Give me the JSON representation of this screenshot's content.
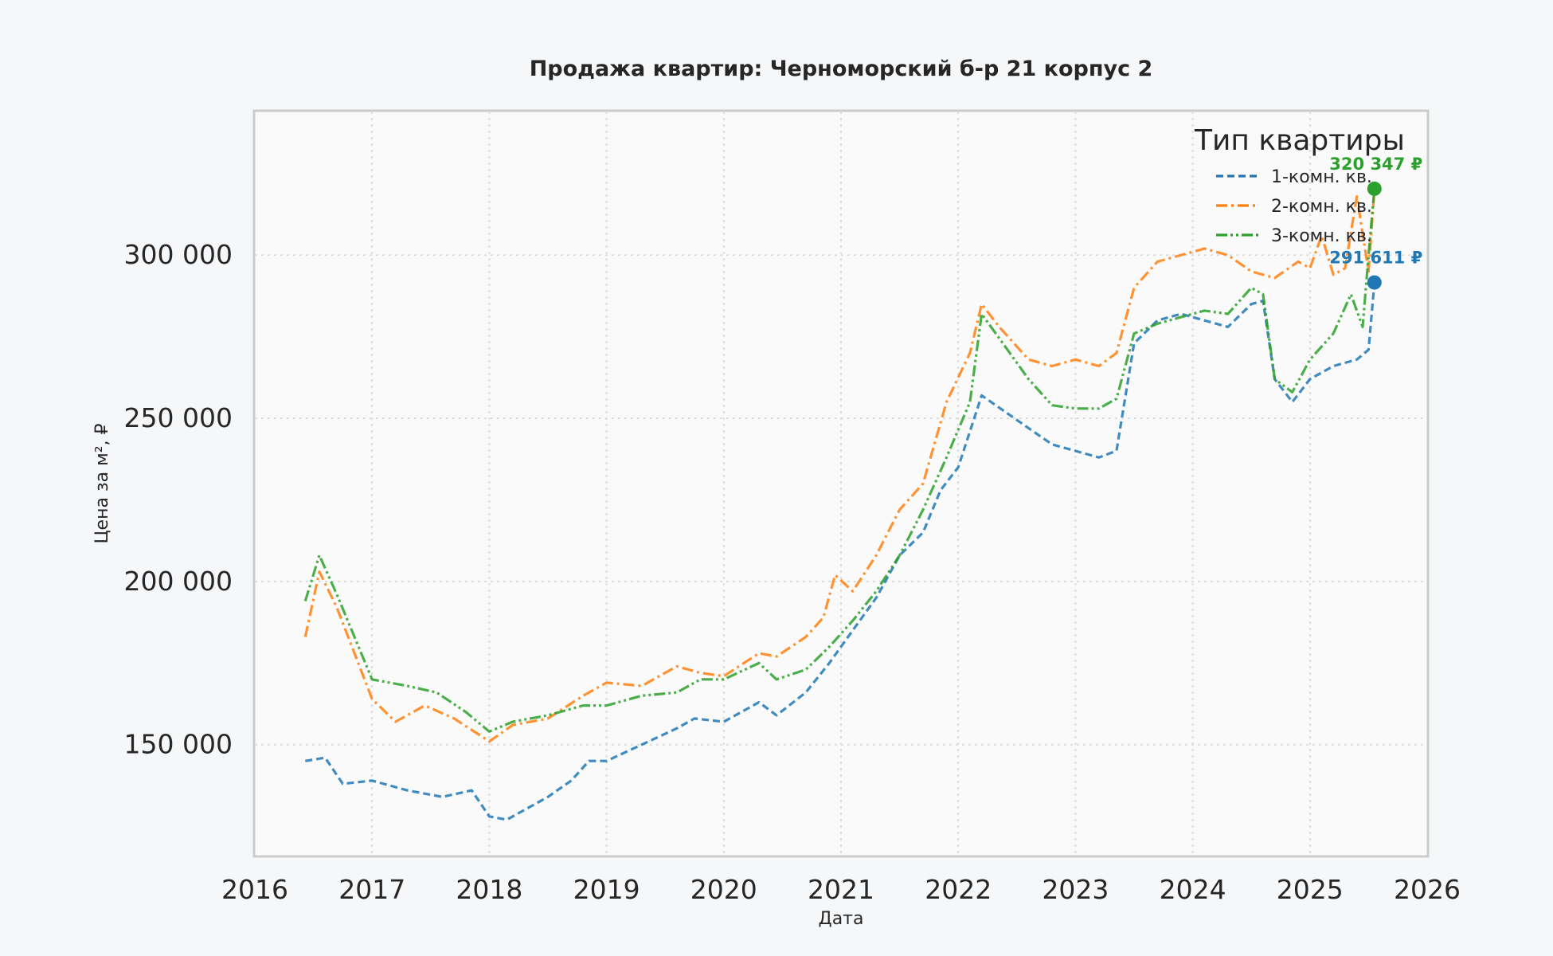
{
  "chart_data": {
    "type": "line",
    "title": "Продажа квартир: Черноморский б-р 21 корпус 2",
    "xlabel": "Дата",
    "ylabel": "Цена за м², ₽",
    "xlim": [
      2016.0,
      2026.0
    ],
    "ylim": [
      116000,
      344000
    ],
    "x_ticks": [
      "2016",
      "2017",
      "2018",
      "2019",
      "2020",
      "2021",
      "2022",
      "2023",
      "2024",
      "2025",
      "2026"
    ],
    "y_ticks": [
      {
        "value": 150000,
        "label": "150 000"
      },
      {
        "value": 200000,
        "label": "200 000"
      },
      {
        "value": 250000,
        "label": "250 000"
      },
      {
        "value": 300000,
        "label": "300 000"
      }
    ],
    "grid": true,
    "legend": {
      "title": "Тип квартиры",
      "position": "top-right"
    },
    "series": [
      {
        "name": "1-комн. кв.",
        "color": "#1f77b4",
        "dash": "dashed",
        "x": [
          2016.43,
          2016.6,
          2016.75,
          2017.0,
          2017.3,
          2017.6,
          2017.85,
          2018.0,
          2018.15,
          2018.3,
          2018.5,
          2018.7,
          2018.85,
          2019.0,
          2019.3,
          2019.6,
          2019.75,
          2020.0,
          2020.3,
          2020.45,
          2020.7,
          2020.9,
          2021.1,
          2021.3,
          2021.5,
          2021.7,
          2021.85,
          2022.0,
          2022.2,
          2022.4,
          2022.6,
          2022.8,
          2023.0,
          2023.2,
          2023.35,
          2023.5,
          2023.7,
          2023.9,
          2024.1,
          2024.3,
          2024.5,
          2024.6,
          2024.7,
          2024.85,
          2025.0,
          2025.2,
          2025.4,
          2025.5,
          2025.55
        ],
        "y": [
          145000,
          146000,
          138000,
          139000,
          136000,
          134000,
          136000,
          128000,
          127000,
          130000,
          134000,
          139000,
          145000,
          145000,
          150000,
          155000,
          158000,
          157000,
          163000,
          159000,
          166000,
          175000,
          185000,
          195000,
          208000,
          215000,
          228000,
          235000,
          257000,
          252000,
          247000,
          242000,
          240000,
          238000,
          240000,
          273000,
          280000,
          282000,
          280000,
          278000,
          285000,
          286000,
          262000,
          255000,
          262000,
          266000,
          268000,
          271000,
          291611
        ]
      },
      {
        "name": "2-комн. кв.",
        "color": "#ff7f0e",
        "dash": "dashdot",
        "x": [
          2016.43,
          2016.55,
          2016.7,
          2016.85,
          2017.0,
          2017.2,
          2017.45,
          2017.7,
          2018.0,
          2018.2,
          2018.5,
          2018.8,
          2019.0,
          2019.3,
          2019.6,
          2019.8,
          2020.0,
          2020.3,
          2020.45,
          2020.7,
          2020.85,
          2020.95,
          2021.1,
          2021.3,
          2021.5,
          2021.7,
          2021.9,
          2022.1,
          2022.2,
          2022.35,
          2022.6,
          2022.8,
          2023.0,
          2023.2,
          2023.35,
          2023.5,
          2023.7,
          2023.9,
          2024.1,
          2024.3,
          2024.5,
          2024.7,
          2024.9,
          2025.0,
          2025.1,
          2025.2,
          2025.3,
          2025.4,
          2025.5,
          2025.55
        ],
        "y": [
          183000,
          203000,
          192000,
          178000,
          164000,
          157000,
          162000,
          158000,
          151000,
          156000,
          158000,
          165000,
          169000,
          168000,
          174000,
          172000,
          171000,
          178000,
          177000,
          183000,
          189000,
          202000,
          197000,
          208000,
          222000,
          230000,
          255000,
          270000,
          285000,
          278000,
          268000,
          266000,
          268000,
          266000,
          270000,
          290000,
          298000,
          300000,
          302000,
          300000,
          295000,
          293000,
          298000,
          296000,
          306000,
          294000,
          296000,
          318000,
          295000,
          320347
        ]
      },
      {
        "name": "3-комн. кв.",
        "color": "#2ca02c",
        "dash": "dashdotdot",
        "x": [
          2016.43,
          2016.55,
          2016.7,
          2016.85,
          2017.0,
          2017.3,
          2017.55,
          2017.8,
          2018.0,
          2018.2,
          2018.5,
          2018.8,
          2019.0,
          2019.3,
          2019.6,
          2019.8,
          2020.0,
          2020.3,
          2020.45,
          2020.7,
          2020.9,
          2021.1,
          2021.3,
          2021.5,
          2021.7,
          2021.9,
          2022.1,
          2022.2,
          2022.4,
          2022.6,
          2022.8,
          2023.0,
          2023.2,
          2023.35,
          2023.5,
          2023.7,
          2023.9,
          2024.1,
          2024.3,
          2024.5,
          2024.6,
          2024.7,
          2024.85,
          2025.0,
          2025.2,
          2025.35,
          2025.45,
          2025.5,
          2025.55
        ],
        "y": [
          194000,
          208000,
          196000,
          183000,
          170000,
          168000,
          166000,
          160000,
          154000,
          157000,
          159000,
          162000,
          162000,
          165000,
          166000,
          170000,
          170000,
          175000,
          170000,
          173000,
          180000,
          188000,
          197000,
          208000,
          222000,
          238000,
          255000,
          282000,
          272000,
          262000,
          254000,
          253000,
          253000,
          256000,
          276000,
          279000,
          281000,
          283000,
          282000,
          290000,
          288000,
          262000,
          258000,
          268000,
          276000,
          288000,
          278000,
          300000,
          320347
        ]
      }
    ],
    "annotations": [
      {
        "text": "320 347 ₽",
        "series": "3-комн. кв.",
        "x": 2025.55,
        "y": 320347,
        "color": "#2ca02c"
      },
      {
        "text": "291 611 ₽",
        "series": "1-комн. кв.",
        "x": 2025.55,
        "y": 291611,
        "color": "#1f77b4"
      }
    ]
  }
}
